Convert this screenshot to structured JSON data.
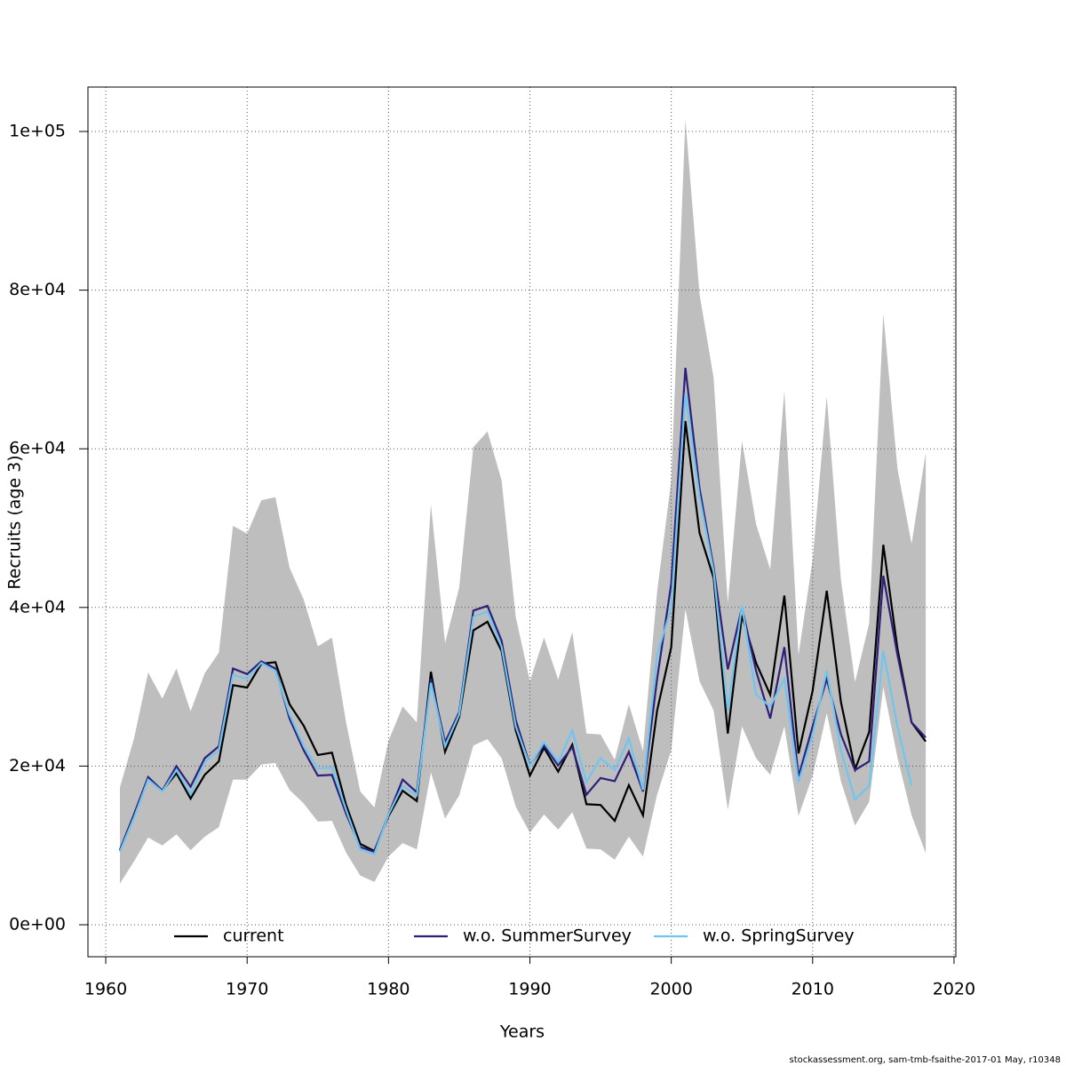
{
  "chart_data": {
    "type": "line",
    "xlabel": "Years",
    "ylabel": "Recruits (age 3)",
    "footnote": "stockassessment.org, sam-tmb-fsaithe-2017-01 May, r10348",
    "x": [
      1961,
      1962,
      1963,
      1964,
      1965,
      1966,
      1967,
      1968,
      1969,
      1970,
      1971,
      1972,
      1973,
      1974,
      1975,
      1976,
      1977,
      1978,
      1979,
      1980,
      1981,
      1982,
      1983,
      1984,
      1985,
      1986,
      1987,
      1988,
      1989,
      1990,
      1991,
      1992,
      1993,
      1994,
      1995,
      1996,
      1997,
      1998,
      1999,
      2000,
      2001,
      2002,
      2003,
      2004,
      2005,
      2006,
      2007,
      2008,
      2009,
      2010,
      2011,
      2012,
      2013,
      2014,
      2015,
      2016,
      2017,
      2018
    ],
    "band": {
      "color": "#bebebe",
      "upper": [
        17300,
        23500,
        31800,
        28500,
        32300,
        26900,
        31700,
        34300,
        50300,
        49300,
        53500,
        53900,
        45000,
        41000,
        35100,
        36200,
        25500,
        16800,
        14800,
        23200,
        27500,
        25500,
        53000,
        35500,
        42500,
        60200,
        62200,
        56000,
        38800,
        30700,
        36200,
        30900,
        36900,
        24100,
        24000,
        20800,
        27800,
        21900,
        42000,
        56000,
        101500,
        79500,
        68900,
        40500,
        61000,
        50500,
        44800,
        67300,
        34000,
        46000,
        66600,
        43500,
        30600,
        38000,
        77000,
        57500,
        48000,
        59500
      ],
      "lower": [
        5200,
        8000,
        11000,
        10000,
        11400,
        9400,
        11100,
        12300,
        18300,
        18300,
        20200,
        20400,
        17000,
        15300,
        13000,
        13100,
        9100,
        6200,
        5400,
        8600,
        10300,
        9500,
        19200,
        13400,
        16300,
        22600,
        23400,
        21000,
        14900,
        11600,
        13900,
        12000,
        14200,
        9600,
        9500,
        8200,
        11100,
        8600,
        16400,
        22000,
        39800,
        30700,
        27000,
        14500,
        25000,
        21000,
        18900,
        25000,
        13700,
        18800,
        26700,
        18100,
        12500,
        15500,
        30000,
        21100,
        13800,
        9000
      ]
    },
    "series": [
      {
        "name": "current",
        "color": "#000000",
        "values": [
          9400,
          13900,
          18600,
          16900,
          19100,
          15900,
          18900,
          20600,
          30200,
          29900,
          32900,
          33100,
          27800,
          25100,
          21400,
          21700,
          15100,
          10200,
          9300,
          13700,
          16900,
          15600,
          31900,
          21800,
          26200,
          37100,
          38200,
          34500,
          24500,
          18800,
          22300,
          19300,
          22700,
          15200,
          15100,
          13100,
          17600,
          13800,
          27000,
          35000,
          63500,
          49400,
          43700,
          24100,
          39000,
          33000,
          29000,
          41500,
          21600,
          29500,
          42100,
          28100,
          19600,
          24300,
          47900,
          34800,
          25500,
          23100
        ]
      },
      {
        "name": "w.o. SummerSurvey",
        "color": "#2e1f7a",
        "values": [
          9400,
          13900,
          18600,
          16900,
          20000,
          17400,
          21000,
          22500,
          32300,
          31600,
          33200,
          32300,
          26000,
          22000,
          18800,
          18900,
          14000,
          9800,
          9200,
          13900,
          18300,
          16700,
          31000,
          23000,
          26800,
          39600,
          40200,
          35800,
          25800,
          20100,
          22600,
          20100,
          22400,
          16400,
          18500,
          18100,
          21800,
          16800,
          31000,
          43000,
          70200,
          55000,
          45000,
          32200,
          40000,
          32000,
          26000,
          35000,
          18700,
          25000,
          31000,
          24000,
          19500,
          20600,
          44000,
          34000,
          25500,
          23600
        ]
      },
      {
        "name": "w.o. SpringSurvey",
        "color": "#6ec6f0",
        "values": [
          9200,
          13500,
          18300,
          16800,
          19500,
          16500,
          20500,
          22000,
          31500,
          31000,
          33000,
          32000,
          26500,
          22500,
          19700,
          19800,
          14500,
          9500,
          8900,
          13900,
          17500,
          16300,
          30500,
          22500,
          26500,
          38800,
          39500,
          35000,
          25000,
          20000,
          23000,
          20500,
          24500,
          18000,
          21000,
          19500,
          23500,
          17000,
          34000,
          40000,
          67000,
          54000,
          44500,
          27000,
          40200,
          29000,
          27500,
          31000,
          18000,
          24000,
          32000,
          22000,
          15800,
          17500,
          34500,
          25000,
          17500,
          null
        ]
      }
    ],
    "xlim": [
      1958.74,
      2020.13
    ],
    "xticks": [
      1960,
      1970,
      1980,
      1990,
      2000,
      2010,
      2020
    ],
    "ylim": [
      -4030,
      105600
    ],
    "yticks": [
      {
        "value": 0,
        "label": "0e+00"
      },
      {
        "value": 20000,
        "label": "2e+04"
      },
      {
        "value": 40000,
        "label": "4e+04"
      },
      {
        "value": 60000,
        "label": "6e+04"
      },
      {
        "value": 80000,
        "label": "8e+04"
      },
      {
        "value": 100000,
        "label": "1e+05"
      }
    ],
    "grid": true,
    "legend": "bottom"
  }
}
